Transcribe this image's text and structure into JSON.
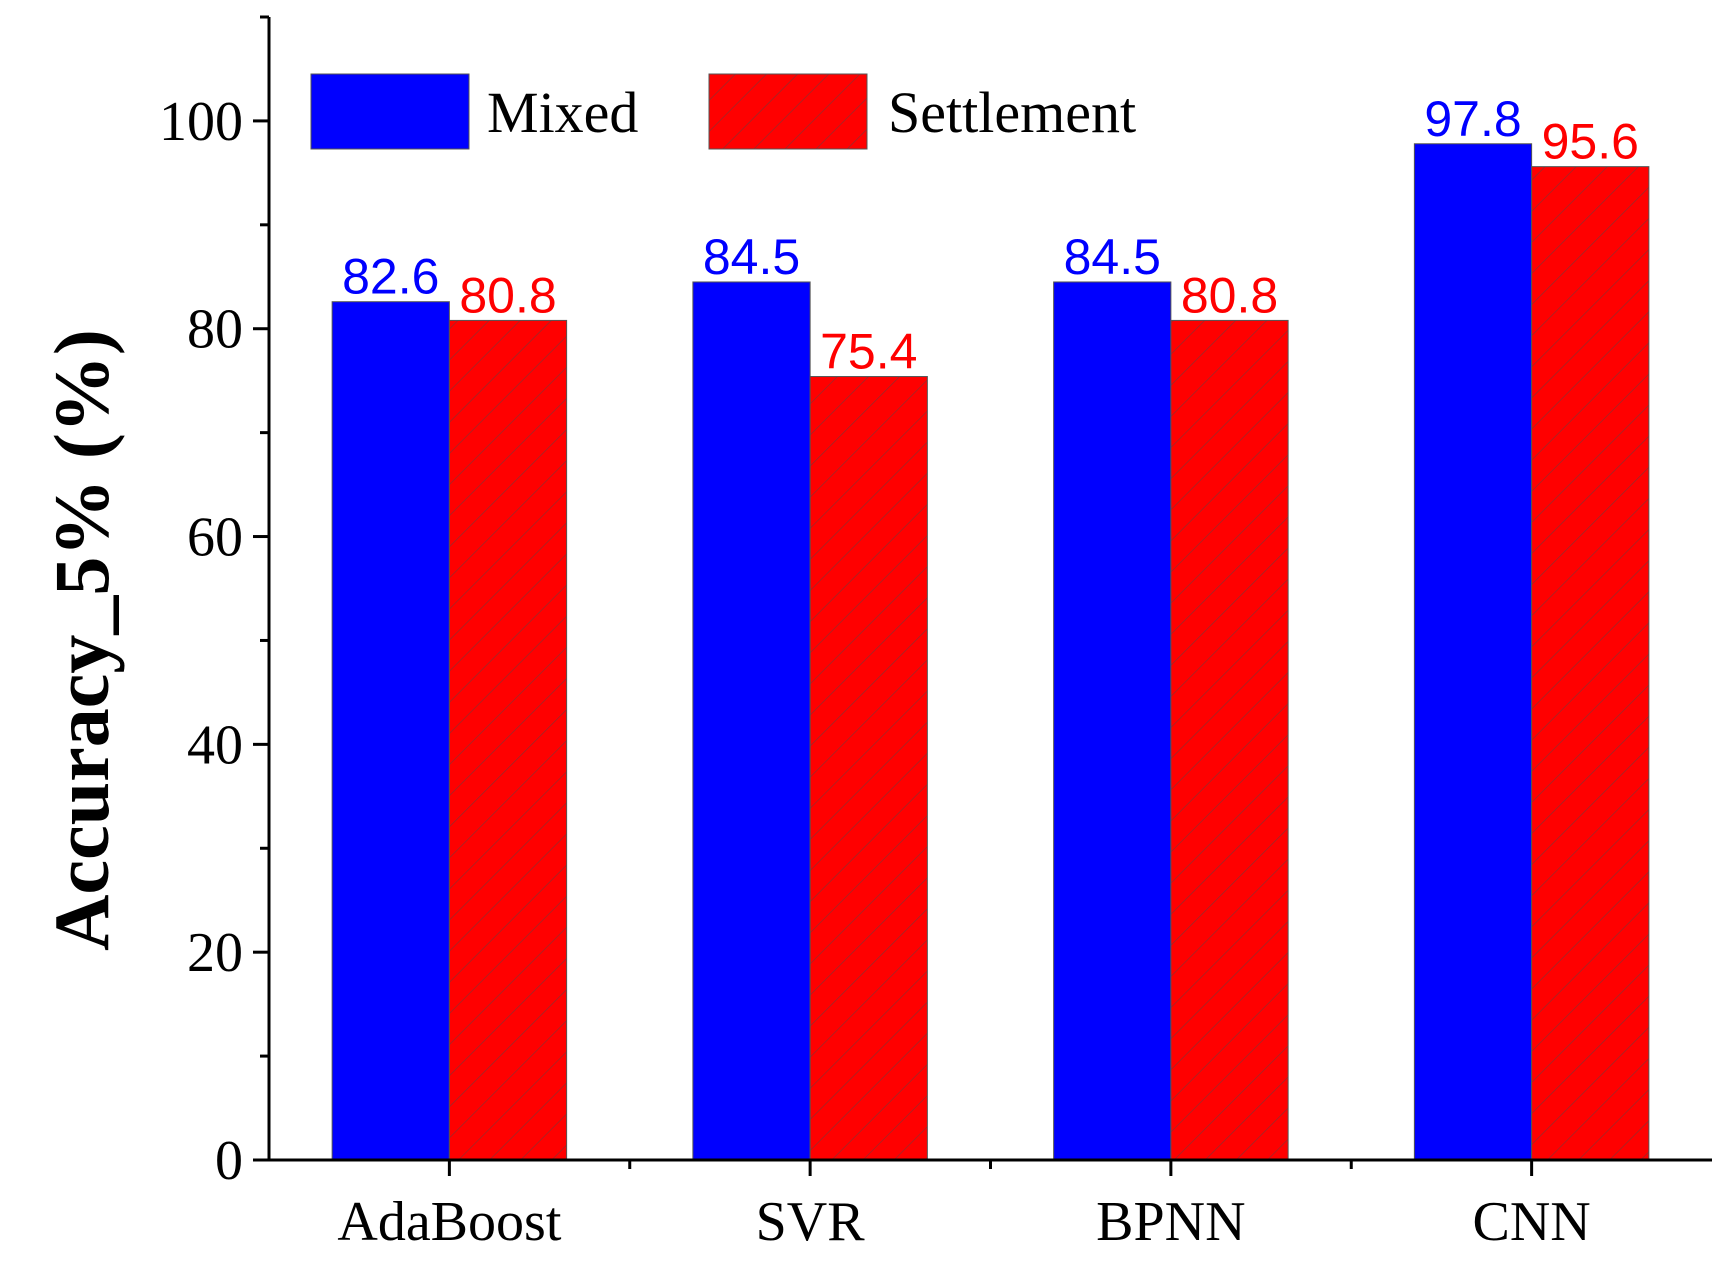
{
  "chart_data": {
    "type": "bar",
    "categories": [
      "AdaBoost",
      "SVR",
      "BPNN",
      "CNN"
    ],
    "series": [
      {
        "name": "Mixed",
        "values": [
          82.6,
          84.5,
          84.5,
          97.8
        ],
        "color": "#0000ff",
        "hatch": false
      },
      {
        "name": "Settlement",
        "values": [
          80.8,
          75.4,
          80.8,
          95.6
        ],
        "color": "#ff0000",
        "hatch": true
      }
    ],
    "data_labels": [
      [
        "82.6",
        "84.5",
        "84.5",
        "97.8"
      ],
      [
        "80.8",
        "75.4",
        "80.8",
        "95.6"
      ]
    ],
    "title": "",
    "xlabel": "",
    "ylabel": "Accuracy_5% (%)",
    "ylim": [
      0,
      110
    ],
    "yticks": [
      0,
      20,
      40,
      60,
      80,
      100
    ],
    "yticklabels": [
      "0",
      "20",
      "40",
      "60",
      "80",
      "100"
    ],
    "grid": false,
    "legend_position": "top-left"
  }
}
